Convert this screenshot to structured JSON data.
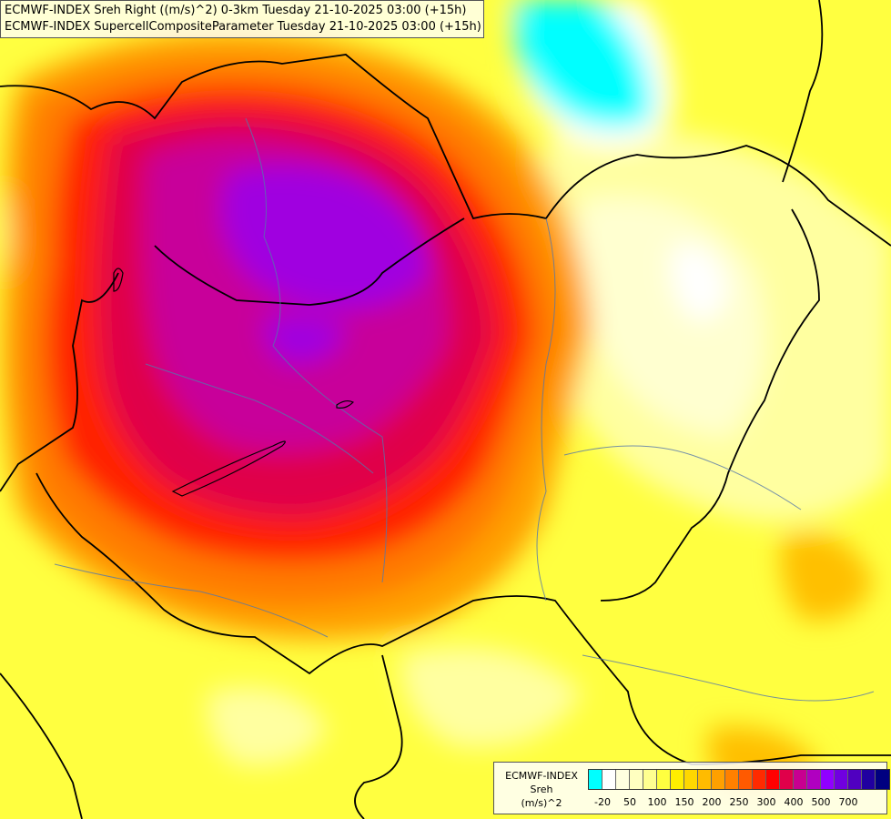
{
  "titles": [
    "ECMWF-INDEX Sreh Right ((m/s)^2) 0-3km Tuesday 21-10-2025 03:00 (+15h)",
    "ECMWF-INDEX SupercellCompositeParameter Tuesday 21-10-2025 03:00 (+15h)"
  ],
  "legend": {
    "model": "ECMWF-INDEX",
    "param": "Sreh",
    "unit": "(m/s)^2",
    "colors": [
      "#00ffff",
      "#ffffff",
      "#ffffe0",
      "#ffffc0",
      "#ffff90",
      "#ffff40",
      "#ffee00",
      "#ffd700",
      "#ffbb00",
      "#ffa000",
      "#ff8000",
      "#ff5a00",
      "#ff2a00",
      "#ff0000",
      "#e0004a",
      "#c80090",
      "#b000c0",
      "#9000ff",
      "#7000e0",
      "#5000c0",
      "#2000a0",
      "#000080"
    ],
    "ticks": [
      {
        "label": "-20",
        "index": 1
      },
      {
        "label": "50",
        "index": 3
      },
      {
        "label": "100",
        "index": 5
      },
      {
        "label": "150",
        "index": 7
      },
      {
        "label": "200",
        "index": 9
      },
      {
        "label": "250",
        "index": 11
      },
      {
        "label": "300",
        "index": 13
      },
      {
        "label": "400",
        "index": 15
      },
      {
        "label": "500",
        "index": 17
      },
      {
        "label": "700",
        "index": 19
      }
    ]
  }
}
